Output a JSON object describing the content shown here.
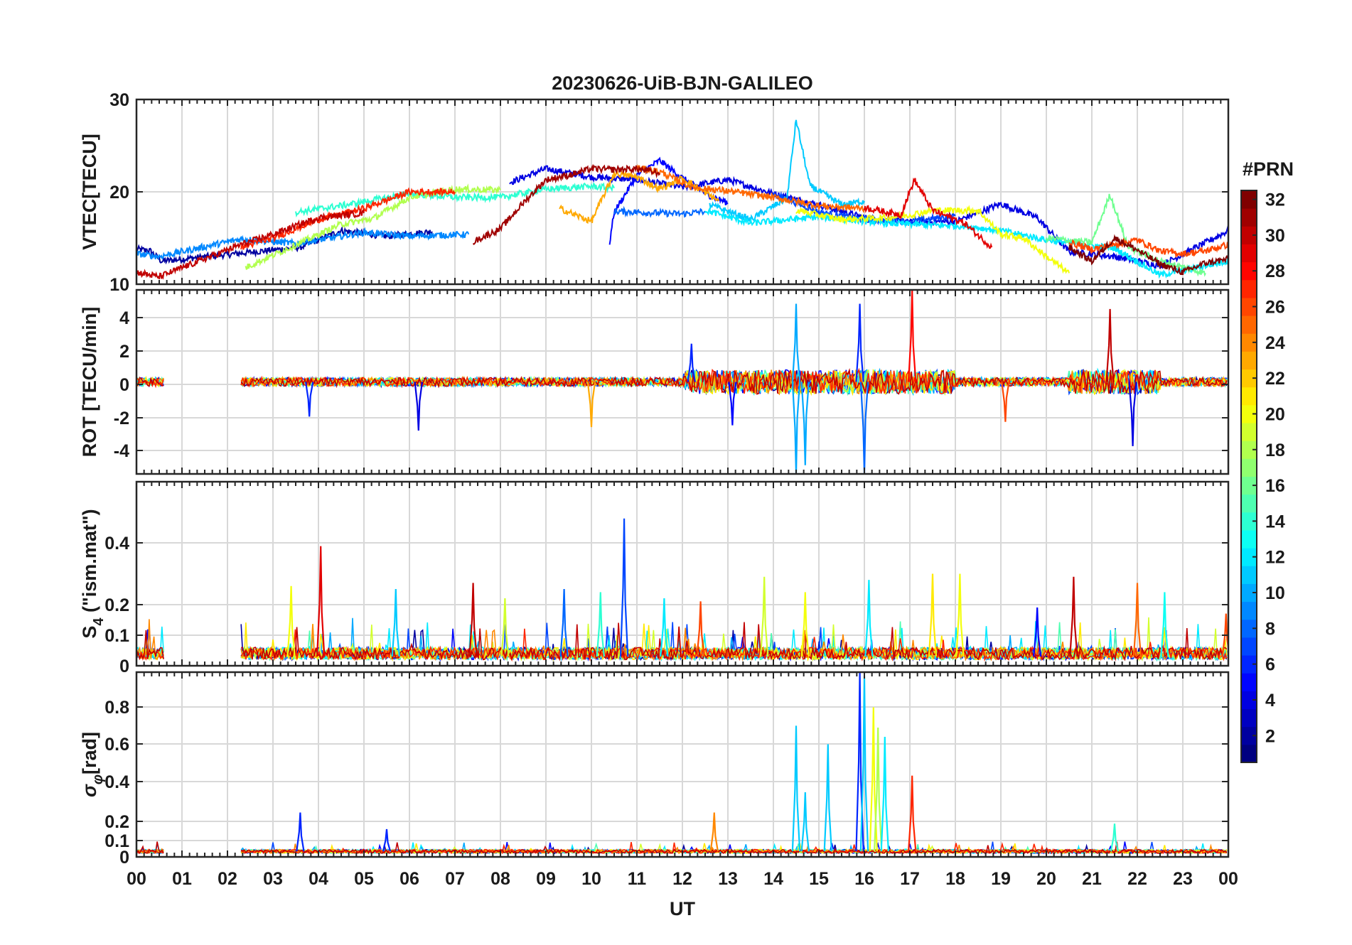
{
  "chart_data": {
    "type": "line",
    "title": "20230626-UiB-BJN-GALILEO",
    "xlabel": "UT",
    "x_tick_labels": [
      "00",
      "01",
      "02",
      "03",
      "04",
      "05",
      "06",
      "07",
      "08",
      "09",
      "10",
      "11",
      "12",
      "13",
      "14",
      "15",
      "16",
      "17",
      "18",
      "19",
      "20",
      "21",
      "22",
      "23",
      "00"
    ],
    "xlim": [
      0,
      24
    ],
    "grid": true,
    "colorbar": {
      "label": "#PRN",
      "range": [
        1,
        32
      ],
      "ticks": [
        "2",
        "4",
        "6",
        "8",
        "10",
        "12",
        "14",
        "16",
        "18",
        "20",
        "22",
        "24",
        "26",
        "28",
        "30",
        "32"
      ],
      "colormap": "jet",
      "colors": [
        "#00008f",
        "#0000ff",
        "#0080ff",
        "#00ffff",
        "#80ff80",
        "#ffff00",
        "#ff8000",
        "#ff0000",
        "#800000"
      ]
    },
    "panels": [
      {
        "id": "vtec",
        "ylabel": "VTEC[TECU]",
        "ylim": [
          10,
          30
        ],
        "yticks": [
          "10",
          "20",
          "30"
        ],
        "series": [
          {
            "prn": 2,
            "points": [
              [
                0.0,
                13.8
              ],
              [
                0.3,
                13.6
              ],
              [
                0.55,
                12.5
              ],
              [
                3.6,
                14.0
              ],
              [
                4.5,
                15.8
              ],
              [
                5.5,
                15.2
              ],
              [
                6.5,
                15.7
              ]
            ]
          },
          {
            "prn": 4,
            "points": [
              [
                8.2,
                21.0
              ],
              [
                9.0,
                22.5
              ],
              [
                10.0,
                21.6
              ],
              [
                11.0,
                21.3
              ],
              [
                12.0,
                20.5
              ],
              [
                13.0,
                21.3
              ],
              [
                14.0,
                19.8
              ],
              [
                15.0,
                18.6
              ],
              [
                16.0,
                17.2
              ],
              [
                17.0,
                16.7
              ],
              [
                18.0,
                16.8
              ],
              [
                19.0,
                18.7
              ],
              [
                19.8,
                17.2
              ],
              [
                20.5,
                13.5
              ],
              [
                21.5,
                13.0
              ],
              [
                22.5,
                12.0
              ],
              [
                23.5,
                14.5
              ],
              [
                24.0,
                15.8
              ]
            ]
          },
          {
            "prn": 5,
            "points": [
              [
                10.4,
                14.5
              ],
              [
                10.5,
                17.8
              ],
              [
                11.0,
                21.8
              ],
              [
                11.5,
                23.4
              ],
              [
                12.0,
                21.5
              ],
              [
                12.6,
                19.6
              ],
              [
                13.0,
                18.8
              ]
            ]
          },
          {
            "prn": 7,
            "points": [
              [
                14.0,
                19.8
              ],
              [
                15.0,
                17.8
              ],
              [
                16.0,
                17.0
              ],
              [
                17.0,
                16.8
              ],
              [
                18.0,
                17.4
              ]
            ]
          },
          {
            "prn": 8,
            "points": [
              [
                10.5,
                17.9
              ],
              [
                11.5,
                17.7
              ],
              [
                12.0,
                17.6
              ],
              [
                12.5,
                17.9
              ]
            ]
          },
          {
            "prn": 9,
            "points": [
              [
                0.0,
                13.3
              ],
              [
                0.5,
                13.0
              ],
              [
                2.3,
                14.9
              ],
              [
                3.5,
                14.4
              ],
              [
                5.0,
                15.6
              ],
              [
                6.0,
                15.2
              ],
              [
                7.3,
                15.4
              ]
            ]
          },
          {
            "prn": 11,
            "points": [
              [
                12.6,
                18.6
              ],
              [
                13.5,
                17.0
              ],
              [
                14.3,
                19.3
              ],
              [
                14.5,
                27.8
              ],
              [
                14.8,
                20.7
              ],
              [
                15.5,
                18.6
              ],
              [
                16.0,
                19.0
              ]
            ]
          },
          {
            "prn": 12,
            "points": [
              [
                12.5,
                18.0
              ],
              [
                13.5,
                16.6
              ],
              [
                15.0,
                17.3
              ],
              [
                16.5,
                16.6
              ],
              [
                17.5,
                16.4
              ],
              [
                18.2,
                16.3
              ],
              [
                19.0,
                15.8
              ],
              [
                20.0,
                14.8
              ],
              [
                21.5,
                13.9
              ],
              [
                22.5,
                11.0
              ],
              [
                23.5,
                12.0
              ],
              [
                24.0,
                12.5
              ]
            ]
          },
          {
            "prn": 14,
            "points": [
              [
                3.5,
                17.8
              ],
              [
                4.5,
                18.5
              ],
              [
                6.0,
                19.8
              ],
              [
                7.0,
                19.4
              ],
              [
                8.0,
                19.4
              ],
              [
                9.0,
                20.3
              ],
              [
                10.0,
                20.6
              ],
              [
                10.5,
                20.4
              ]
            ]
          },
          {
            "prn": 16,
            "points": [
              [
                20.0,
                15.0
              ],
              [
                21.0,
                14.5
              ],
              [
                21.4,
                19.7
              ],
              [
                21.8,
                14.0
              ],
              [
                22.5,
                12.5
              ],
              [
                23.5,
                11.2
              ]
            ]
          },
          {
            "prn": 18,
            "points": [
              [
                2.4,
                11.8
              ],
              [
                3.3,
                13.8
              ],
              [
                4.5,
                16.5
              ],
              [
                5.2,
                17.1
              ],
              [
                6.0,
                19.4
              ],
              [
                7.0,
                20.3
              ],
              [
                8.0,
                20.2
              ]
            ]
          },
          {
            "prn": 20,
            "points": [
              [
                14.5,
                18.0
              ],
              [
                15.5,
                17.0
              ],
              [
                16.5,
                17.2
              ],
              [
                17.0,
                17.5
              ],
              [
                17.5,
                18.0
              ],
              [
                18.5,
                18.0
              ],
              [
                19.0,
                15.4
              ],
              [
                19.5,
                15.0
              ],
              [
                20.0,
                13.0
              ],
              [
                20.5,
                11.2
              ]
            ]
          },
          {
            "prn": 23,
            "points": [
              [
                9.3,
                18.2
              ],
              [
                10.0,
                16.8
              ],
              [
                10.5,
                22.0
              ],
              [
                11.0,
                21.6
              ],
              [
                11.5,
                20.3
              ],
              [
                12.0,
                21.5
              ],
              [
                12.8,
                19.0
              ]
            ]
          },
          {
            "prn": 25,
            "points": [
              [
                11.0,
                22.6
              ],
              [
                11.5,
                22.2
              ],
              [
                12.2,
                20.5
              ],
              [
                13.0,
                20.1
              ],
              [
                14.0,
                19.4
              ],
              [
                15.0,
                18.5
              ],
              [
                16.0,
                18.2
              ]
            ]
          },
          {
            "prn": 26,
            "points": [
              [
                20.5,
                14.5
              ],
              [
                21.0,
                13.8
              ],
              [
                22.0,
                14.8
              ],
              [
                22.5,
                13.6
              ],
              [
                23.0,
                13.3
              ],
              [
                23.5,
                13.6
              ],
              [
                24.0,
                14.3
              ]
            ]
          },
          {
            "prn": 27,
            "points": [
              [
                2.3,
                14.0
              ],
              [
                3.0,
                15.0
              ],
              [
                4.0,
                17.0
              ],
              [
                5.0,
                18.2
              ],
              [
                6.0,
                20.0
              ],
              [
                7.0,
                20.0
              ]
            ]
          },
          {
            "prn": 29,
            "points": [
              [
                16.0,
                18.3
              ],
              [
                16.8,
                17.5
              ],
              [
                17.1,
                21.3
              ],
              [
                17.5,
                18.0
              ],
              [
                18.2,
                16.6
              ],
              [
                18.8,
                14.0
              ]
            ]
          },
          {
            "prn": 30,
            "points": [
              [
                0.0,
                11.3
              ],
              [
                0.5,
                10.8
              ],
              [
                2.3,
                14.3
              ],
              [
                3.0,
                15.4
              ],
              [
                4.0,
                17.2
              ],
              [
                5.0,
                17.7
              ]
            ]
          },
          {
            "prn": 31,
            "points": [
              [
                7.4,
                14.6
              ],
              [
                8.0,
                16.0
              ],
              [
                8.5,
                18.8
              ],
              [
                9.0,
                21.3
              ],
              [
                9.5,
                21.8
              ],
              [
                10.0,
                22.5
              ],
              [
                10.5,
                22.4
              ],
              [
                11.0,
                22.5
              ],
              [
                11.5,
                22.0
              ]
            ]
          },
          {
            "prn": 32,
            "points": [
              [
                20.5,
                14.0
              ],
              [
                21.0,
                12.5
              ],
              [
                21.5,
                15.0
              ],
              [
                22.0,
                13.7
              ],
              [
                22.5,
                12.2
              ],
              [
                23.0,
                11.3
              ],
              [
                23.5,
                12.3
              ],
              [
                24.0,
                12.7
              ]
            ]
          }
        ]
      },
      {
        "id": "rot",
        "ylabel": "ROT [TECU/min]",
        "ylim": [
          -5.3,
          5.3
        ],
        "yticks": [
          "-4",
          "-2",
          "0",
          "2",
          "4"
        ],
        "spikes": [
          {
            "prn": 10,
            "x": 14.5,
            "y": 4.5
          },
          {
            "prn": 10,
            "x": 14.5,
            "y": -5.3
          },
          {
            "prn": 10,
            "x": 14.7,
            "y": -4.8
          },
          {
            "prn": 6,
            "x": 15.9,
            "y": 4.5
          },
          {
            "prn": 8,
            "x": 16.0,
            "y": -5.3
          },
          {
            "prn": 28,
            "x": 17.05,
            "y": 5.3
          },
          {
            "prn": 30,
            "x": 21.4,
            "y": 4.2
          },
          {
            "prn": 4,
            "x": 21.9,
            "y": -3.7
          },
          {
            "prn": 4,
            "x": 6.2,
            "y": -2.8
          },
          {
            "prn": 23,
            "x": 10.0,
            "y": -2.6
          },
          {
            "prn": 5,
            "x": 13.1,
            "y": -2.5
          },
          {
            "prn": 26,
            "x": 19.1,
            "y": -2.3
          },
          {
            "prn": 6,
            "x": 3.8,
            "y": -2.0
          },
          {
            "prn": 6,
            "x": 12.2,
            "y": 2.2
          }
        ]
      },
      {
        "id": "s4",
        "ylabel": "S4 (\"ism.mat\")",
        "ylim": [
          0,
          0.6
        ],
        "yticks": [
          "0",
          "0.1",
          "0.2",
          "0.4"
        ],
        "spikes": [
          {
            "prn": 29,
            "x": 4.05,
            "y": 0.39
          },
          {
            "prn": 20,
            "x": 3.4,
            "y": 0.26
          },
          {
            "prn": 11,
            "x": 5.7,
            "y": 0.25
          },
          {
            "prn": 30,
            "x": 7.4,
            "y": 0.27
          },
          {
            "prn": 19,
            "x": 8.1,
            "y": 0.22
          },
          {
            "prn": 8,
            "x": 9.4,
            "y": 0.25
          },
          {
            "prn": 14,
            "x": 10.2,
            "y": 0.24
          },
          {
            "prn": 7,
            "x": 10.72,
            "y": 0.48
          },
          {
            "prn": 12,
            "x": 11.6,
            "y": 0.22
          },
          {
            "prn": 26,
            "x": 12.4,
            "y": 0.21
          },
          {
            "prn": 19,
            "x": 13.8,
            "y": 0.29
          },
          {
            "prn": 20,
            "x": 14.7,
            "y": 0.24
          },
          {
            "prn": 12,
            "x": 16.1,
            "y": 0.28
          },
          {
            "prn": 21,
            "x": 17.5,
            "y": 0.3
          },
          {
            "prn": 20,
            "x": 18.1,
            "y": 0.3
          },
          {
            "prn": 30,
            "x": 20.6,
            "y": 0.29
          },
          {
            "prn": 5,
            "x": 19.8,
            "y": 0.19
          },
          {
            "prn": 25,
            "x": 22.0,
            "y": 0.27
          },
          {
            "prn": 13,
            "x": 22.6,
            "y": 0.24
          },
          {
            "prn": 26,
            "x": 23.95,
            "y": 0.17
          }
        ]
      },
      {
        "id": "sigma_phi",
        "ylabel": "σφ[rad]",
        "ylim": [
          0,
          1.0
        ],
        "yticks": [
          "0",
          "0.1",
          "0.2",
          "0.4",
          "0.6",
          "0.8"
        ],
        "spikes": [
          {
            "prn": 6,
            "x": 3.6,
            "y": 0.24
          },
          {
            "prn": 6,
            "x": 5.5,
            "y": 0.15
          },
          {
            "prn": 24,
            "x": 12.7,
            "y": 0.24
          },
          {
            "prn": 11,
            "x": 14.5,
            "y": 0.71
          },
          {
            "prn": 11,
            "x": 14.7,
            "y": 0.35
          },
          {
            "prn": 11,
            "x": 15.2,
            "y": 0.61
          },
          {
            "prn": 6,
            "x": 15.9,
            "y": 1.0
          },
          {
            "prn": 11,
            "x": 16.0,
            "y": 0.98
          },
          {
            "prn": 20,
            "x": 16.2,
            "y": 0.81
          },
          {
            "prn": 18,
            "x": 16.3,
            "y": 0.7
          },
          {
            "prn": 12,
            "x": 16.45,
            "y": 0.65
          },
          {
            "prn": 27,
            "x": 17.05,
            "y": 0.44
          },
          {
            "prn": 14,
            "x": 21.5,
            "y": 0.18
          }
        ]
      }
    ]
  }
}
